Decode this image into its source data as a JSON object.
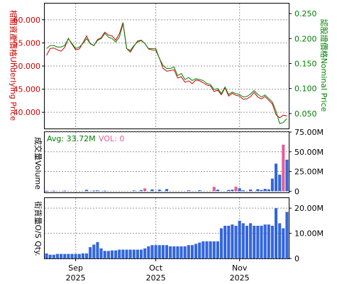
{
  "chart_data": [
    {
      "panel": "price",
      "type": "line",
      "ylabel_left": "相關資產價格Underlying Price",
      "ylabel_right": "認股證價格Nominal Price",
      "y_left_ticks": [
        "40.000",
        "45.000",
        "50.000",
        "55.000",
        "60.000"
      ],
      "y_right_ticks": [
        "0.050",
        "0.100",
        "0.150",
        "0.200",
        "0.250"
      ],
      "ylim_left": [
        36.5,
        63.5
      ],
      "ylim_right": [
        0.02,
        0.27
      ],
      "x_ticks": [
        {
          "index": 8,
          "month": "Sep",
          "year": "2025"
        },
        {
          "index": 30,
          "month": "Oct",
          "year": "2025"
        },
        {
          "index": 53,
          "month": "Nov",
          "year": "2025"
        }
      ],
      "grid": true,
      "series": [
        {
          "axis": "left",
          "color": "#cc0000",
          "values": [
            52.3,
            53.8,
            53.9,
            53.5,
            53.2,
            54.0,
            56.0,
            54.7,
            53.5,
            53.7,
            55.0,
            56.5,
            54.8,
            54.4,
            55.7,
            56.1,
            57.3,
            56.7,
            56.5,
            55.6,
            57.0,
            59.4,
            53.8,
            53.0,
            54.3,
            55.4,
            55.6,
            54.9,
            53.7,
            53.5,
            53.4,
            51.7,
            49.5,
            48.9,
            49.0,
            49.2,
            47.4,
            47.7,
            46.5,
            46.8,
            46.2,
            47.0,
            46.8,
            46.4,
            45.9,
            45.7,
            44.5,
            44.8,
            43.8,
            45.3,
            43.5,
            44.1,
            43.7,
            43.5,
            42.8,
            42.9,
            43.4,
            44.3,
            43.3,
            42.9,
            43.4,
            42.6,
            41.8,
            39.5,
            38.8,
            39.4,
            39.2
          ]
        },
        {
          "axis": "right",
          "color": "#008000",
          "values": [
            0.18,
            0.186,
            0.186,
            0.183,
            0.183,
            0.186,
            0.2,
            0.19,
            0.18,
            0.183,
            0.19,
            0.2,
            0.19,
            0.186,
            0.196,
            0.2,
            0.21,
            0.203,
            0.2,
            0.193,
            0.203,
            0.23,
            0.18,
            0.176,
            0.186,
            0.193,
            0.196,
            0.19,
            0.18,
            0.18,
            0.18,
            0.16,
            0.146,
            0.14,
            0.14,
            0.143,
            0.126,
            0.13,
            0.118,
            0.122,
            0.116,
            0.12,
            0.118,
            0.116,
            0.11,
            0.108,
            0.098,
            0.1,
            0.09,
            0.103,
            0.088,
            0.093,
            0.09,
            0.088,
            0.083,
            0.084,
            0.089,
            0.096,
            0.088,
            0.083,
            0.087,
            0.08,
            0.073,
            0.055,
            0.03,
            0.032,
            0.04
          ]
        }
      ]
    },
    {
      "panel": "volume",
      "type": "bar",
      "ylabel": "成交量Volume",
      "avg_label": "Avg: 33.72M",
      "vol_label": "VOL: 0",
      "y_ticks": [
        "0",
        "25.00M",
        "50.00M",
        "75.00M"
      ],
      "ylim": [
        -1.5,
        75
      ],
      "grid": true,
      "up_color": "#3366dd",
      "down_color": "#e0609a",
      "bars": [
        {
          "i": 0,
          "v": 0.5,
          "c": "b"
        },
        {
          "i": 2,
          "v": 0.6,
          "c": "b"
        },
        {
          "i": 5,
          "v": 0.7,
          "c": "b"
        },
        {
          "i": 11,
          "v": 1.8,
          "c": "b"
        },
        {
          "i": 13,
          "v": 0.8,
          "c": "b"
        },
        {
          "i": 14,
          "v": 1.0,
          "c": "b"
        },
        {
          "i": 16,
          "v": 0.6,
          "c": "b"
        },
        {
          "i": 24,
          "v": 0.9,
          "c": "b"
        },
        {
          "i": 26,
          "v": 1.4,
          "c": "b"
        },
        {
          "i": 27,
          "v": 3.6,
          "c": "p"
        },
        {
          "i": 29,
          "v": 2.4,
          "c": "b"
        },
        {
          "i": 31,
          "v": 2.0,
          "c": "b"
        },
        {
          "i": 33,
          "v": 2.8,
          "c": "b"
        },
        {
          "i": 39,
          "v": 1.0,
          "c": "b"
        },
        {
          "i": 42,
          "v": 1.2,
          "c": "b"
        },
        {
          "i": 46,
          "v": 5.5,
          "c": "p"
        },
        {
          "i": 47,
          "v": 2.0,
          "c": "b"
        },
        {
          "i": 50,
          "v": 1.5,
          "c": "b"
        },
        {
          "i": 51,
          "v": 2.0,
          "c": "b"
        },
        {
          "i": 52,
          "v": 5.8,
          "c": "p"
        },
        {
          "i": 53,
          "v": 3.8,
          "c": "b"
        },
        {
          "i": 54,
          "v": 1.2,
          "c": "b"
        },
        {
          "i": 56,
          "v": 2.2,
          "c": "b"
        },
        {
          "i": 58,
          "v": 2.6,
          "c": "b"
        },
        {
          "i": 59,
          "v": 1.6,
          "c": "b"
        },
        {
          "i": 60,
          "v": 3.0,
          "c": "b"
        },
        {
          "i": 61,
          "v": 2.4,
          "c": "b"
        },
        {
          "i": 62,
          "v": 16.0,
          "c": "b"
        },
        {
          "i": 63,
          "v": 35.0,
          "c": "b"
        },
        {
          "i": 64,
          "v": 21.0,
          "c": "b"
        },
        {
          "i": 65,
          "v": 59.0,
          "c": "p"
        },
        {
          "i": 66,
          "v": 40.0,
          "c": "b"
        }
      ]
    },
    {
      "panel": "os_qty",
      "type": "bar",
      "ylabel": "街貨量O/S Qty.",
      "y_ticks": [
        "0",
        "10.00M",
        "20.00M"
      ],
      "ylim": [
        0,
        24
      ],
      "grid": true,
      "color": "#3366dd",
      "values": [
        2.0,
        1.5,
        1.5,
        1.8,
        1.8,
        1.8,
        1.8,
        1.8,
        1.8,
        1.8,
        2.0,
        2.0,
        4.5,
        5.5,
        6.5,
        4.0,
        3.0,
        3.0,
        3.2,
        3.2,
        3.5,
        3.5,
        3.5,
        3.5,
        3.5,
        3.5,
        3.5,
        4.0,
        4.8,
        5.3,
        5.3,
        5.3,
        5.3,
        5.3,
        4.8,
        4.8,
        4.8,
        4.8,
        4.8,
        5.3,
        5.3,
        5.8,
        6.3,
        6.8,
        6.8,
        6.8,
        6.8,
        6.8,
        12.0,
        13.0,
        13.0,
        13.5,
        13.0,
        15.0,
        14.0,
        13.0,
        14.0,
        13.0,
        13.0,
        13.0,
        13.5,
        13.5,
        13.0,
        20.0,
        14.0,
        12.0,
        18.5
      ]
    }
  ]
}
